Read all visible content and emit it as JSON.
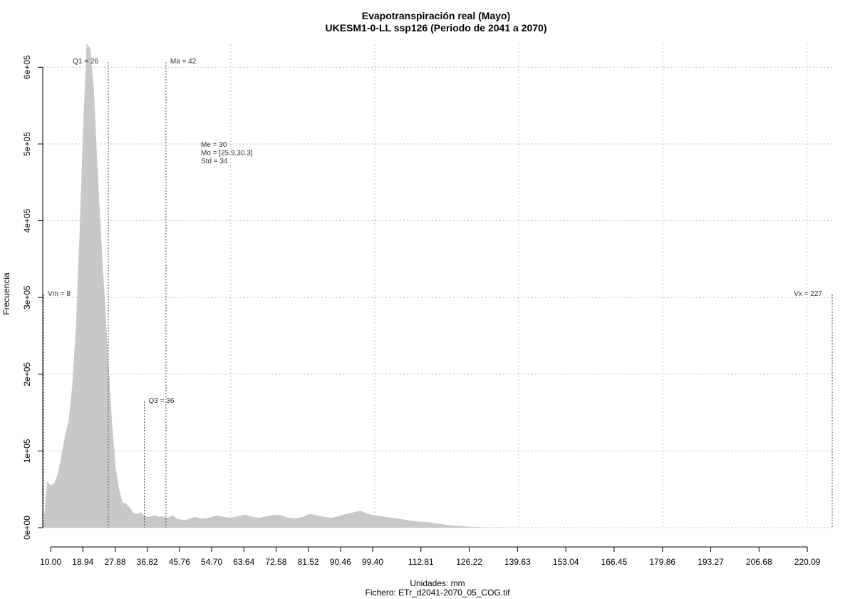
{
  "chart_data": {
    "type": "area",
    "title": "Evapotranspiración real (Mayo)",
    "subtitle": "UKESM1-0-LL ssp126 (Periodo de 2041 a 2070)",
    "xlabel": "Unidades: mm",
    "ylabel": "Frecuencia",
    "caption": "Fichero: ETr_d2041-2070_05_COG.tif",
    "x_tick_values": [
      10.0,
      18.94,
      27.88,
      36.82,
      45.76,
      54.7,
      63.64,
      72.58,
      81.52,
      90.46,
      99.4,
      112.81,
      126.22,
      139.63,
      153.04,
      166.45,
      179.86,
      193.27,
      206.68,
      220.09
    ],
    "x_tick_labels": [
      "10.00",
      "18.94",
      "27.88",
      "36.82",
      "45.76",
      "54.70",
      "63.64",
      "72.58",
      "81.52",
      "90.46",
      "99.40",
      "112.81",
      "126.22",
      "139.63",
      "153.04",
      "166.45",
      "179.86",
      "193.27",
      "206.68",
      "220.09"
    ],
    "y_tick_values": [
      0,
      100000,
      200000,
      300000,
      400000,
      500000,
      600000
    ],
    "y_tick_labels": [
      "0e+00",
      "1e+05",
      "2e+05",
      "3e+05",
      "4e+05",
      "5e+05",
      "6e+05"
    ],
    "xlim": [
      8,
      227
    ],
    "ylim": [
      0,
      630000
    ],
    "grid": true,
    "x": [
      8,
      9,
      10,
      11,
      12,
      13,
      14,
      15,
      16,
      17,
      18,
      19,
      20,
      21,
      22,
      23,
      24,
      25,
      26,
      27,
      28,
      29,
      30,
      31,
      32,
      33,
      34,
      35,
      36,
      37,
      38,
      39,
      40,
      41,
      42,
      43,
      44,
      45,
      46,
      47,
      48,
      50,
      52,
      54,
      56,
      58,
      60,
      62,
      64,
      66,
      68,
      70,
      72,
      74,
      76,
      78,
      80,
      82,
      84,
      86,
      88,
      90,
      92,
      94,
      96,
      98,
      100,
      103,
      106,
      109,
      112,
      115,
      118,
      121,
      124,
      127,
      130,
      133,
      136,
      139,
      142,
      145,
      148,
      151,
      154,
      157,
      160,
      163,
      166,
      170,
      180,
      190,
      200,
      210,
      220,
      227
    ],
    "y": [
      2000,
      60000,
      55000,
      58000,
      70000,
      95000,
      120000,
      140000,
      185000,
      260000,
      380000,
      520000,
      630000,
      625000,
      570000,
      470000,
      380000,
      300000,
      220000,
      140000,
      80000,
      50000,
      33000,
      31000,
      26000,
      19000,
      18000,
      20000,
      16000,
      14000,
      15000,
      16000,
      14000,
      15000,
      13000,
      14000,
      16000,
      12000,
      11000,
      10000,
      11000,
      14000,
      12000,
      13000,
      16000,
      14000,
      13000,
      15000,
      17000,
      14000,
      13000,
      15000,
      17000,
      16000,
      13000,
      12000,
      14000,
      18000,
      16000,
      14000,
      13000,
      15000,
      18000,
      20000,
      22000,
      18000,
      16000,
      14000,
      12000,
      10000,
      8000,
      7000,
      5000,
      3000,
      2000,
      1000,
      500,
      300,
      200,
      100,
      0,
      0,
      0,
      0,
      0,
      0,
      0,
      0,
      0,
      0,
      0,
      0,
      0,
      0,
      0,
      0
    ],
    "vlines": [
      {
        "label": "Vm = 8",
        "value": 8,
        "label_side": "right"
      },
      {
        "label": "Q1 = 26",
        "value": 26,
        "label_side": "left"
      },
      {
        "label": "Q3 = 36",
        "value": 36,
        "label_side": "right"
      },
      {
        "label": "Ma = 42",
        "value": 42,
        "label_side": "right"
      },
      {
        "label": "Vx = 227",
        "value": 227,
        "label_side": "left"
      }
    ],
    "stats": [
      "Me = 30",
      "Mo = [25.9,30.3]",
      "Std = 34"
    ],
    "colors": {
      "fill": "#c8c8c8",
      "grid": "#c0c0c0",
      "vline": "#555555",
      "text": "#000000",
      "annotation": "#333333"
    }
  }
}
